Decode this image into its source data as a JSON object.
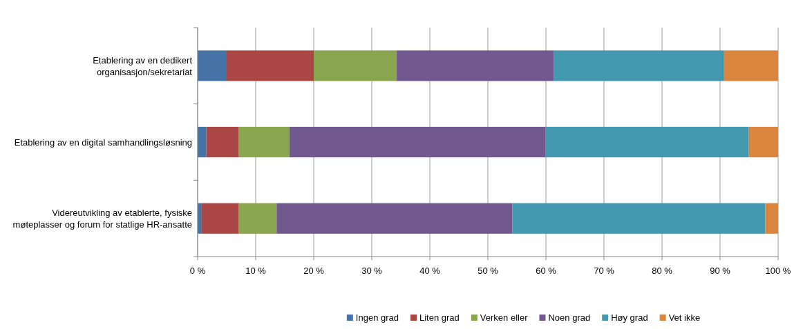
{
  "chart_data": {
    "type": "bar",
    "orientation": "horizontal",
    "stacked": true,
    "categories": [
      "Etablering av en dedikert organisasjon/sekretariat",
      "Etablering av en digital samhandlingsløsning",
      "Videreutvikling av etablerte, fysiske møteplasser og forum for statlige HR-ansatte"
    ],
    "series": [
      {
        "name": "Ingen grad",
        "color": "#4572a7",
        "values": [
          5.0,
          1.5,
          0.7
        ]
      },
      {
        "name": "Liten grad",
        "color": "#aa4643",
        "values": [
          15.0,
          5.6,
          6.4
        ]
      },
      {
        "name": "Verken eller",
        "color": "#89a54e",
        "values": [
          14.3,
          8.7,
          6.5
        ]
      },
      {
        "name": "Noen grad",
        "color": "#71588f",
        "values": [
          27.0,
          44.1,
          40.6
        ]
      },
      {
        "name": "Høy grad",
        "color": "#4198af",
        "values": [
          29.4,
          35.0,
          43.6
        ]
      },
      {
        "name": "Vet ikke",
        "color": "#db843d",
        "values": [
          9.3,
          5.1,
          2.2
        ]
      }
    ],
    "xlim": [
      0,
      100
    ],
    "xticks": [
      {
        "value": 0,
        "label": "0 %"
      },
      {
        "value": 10,
        "label": "10 %"
      },
      {
        "value": 20,
        "label": "20 %"
      },
      {
        "value": 30,
        "label": "30 %"
      },
      {
        "value": 40,
        "label": "40 %"
      },
      {
        "value": 50,
        "label": "50 %"
      },
      {
        "value": 60,
        "label": "60 %"
      },
      {
        "value": 70,
        "label": "70 %"
      },
      {
        "value": 80,
        "label": "80 %"
      },
      {
        "value": 90,
        "label": "90 %"
      },
      {
        "value": 100,
        "label": "100 %"
      }
    ],
    "grid": "x",
    "legend": "bottom"
  }
}
